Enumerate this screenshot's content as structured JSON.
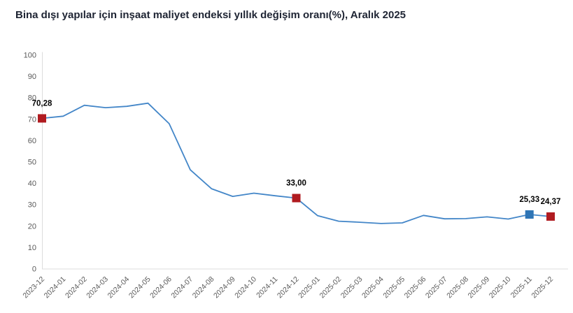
{
  "title": {
    "text": "Bina dışı yapılar için inşaat maliyet endeksi yıllık değişim oranı(%), Aralık 2025"
  },
  "colors": {
    "background": "#ffffff",
    "title_text": "#1e2433",
    "line": "#4386c8",
    "marker_red": "#b01b20",
    "marker_blue": "#2e75b6",
    "axis_line": "#dcdcdc",
    "tick_label": "#595959",
    "data_label": "#000000"
  },
  "chart_data": {
    "type": "line",
    "title": "Bina dışı yapılar için inşaat maliyet endeksi yıllık değişim oranı(%), Aralık 2025",
    "xlabel": "",
    "ylabel": "",
    "ylim": [
      0,
      100
    ],
    "y_ticks": [
      0,
      10,
      20,
      30,
      40,
      50,
      60,
      70,
      80,
      90,
      100
    ],
    "grid": false,
    "legend": "none",
    "categories": [
      "2023-12",
      "2024-01",
      "2024-02",
      "2024-03",
      "2024-04",
      "2024-05",
      "2024-06",
      "2024-07",
      "2024-08",
      "2024-09",
      "2024-10",
      "2024-11",
      "2024-12",
      "2025-01",
      "2025-02",
      "2025-03",
      "2025-04",
      "2025-05",
      "2025-06",
      "2025-07",
      "2025-08",
      "2025-09",
      "2025-10",
      "2025-11",
      "2025-12"
    ],
    "values": [
      70.28,
      71.3,
      76.4,
      75.3,
      75.9,
      77.4,
      67.8,
      46.2,
      37.4,
      33.8,
      35.3,
      34.1,
      33.0,
      24.8,
      22.2,
      21.7,
      21.1,
      21.4,
      24.9,
      23.3,
      23.4,
      24.2,
      23.2,
      25.33,
      24.37
    ],
    "line_color": "#4386c8",
    "axis_color": "#dcdcdc",
    "tick_label_color": "#595959",
    "annotations": [
      {
        "category": "2023-12",
        "index": 0,
        "value": 70.28,
        "label": "70,28",
        "marker": "square",
        "marker_color": "#b01b20"
      },
      {
        "category": "2024-12",
        "index": 12,
        "value": 33.0,
        "label": "33,00",
        "marker": "square",
        "marker_color": "#b01b20"
      },
      {
        "category": "2025-11",
        "index": 23,
        "value": 25.33,
        "label": "25,33",
        "marker": "square",
        "marker_color": "#2e75b6"
      },
      {
        "category": "2025-12",
        "index": 24,
        "value": 24.37,
        "label": "24,37",
        "marker": "square",
        "marker_color": "#b01b20"
      }
    ]
  }
}
